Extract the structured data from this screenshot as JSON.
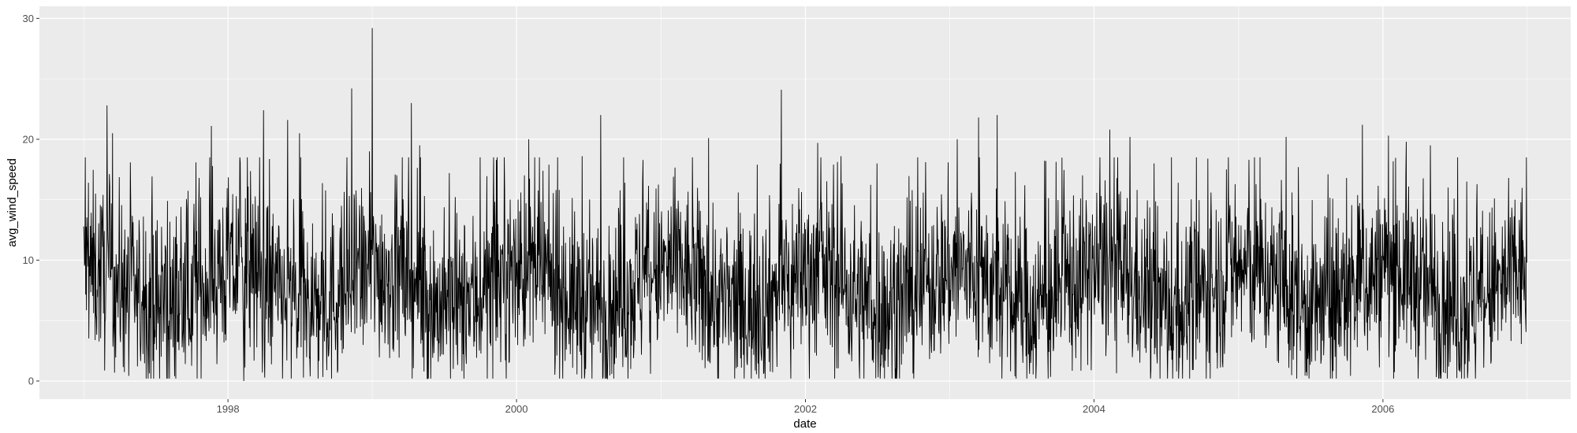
{
  "chart_data": {
    "type": "line",
    "title": "",
    "xlabel": "date",
    "ylabel": "avg_wind_speed",
    "x_type": "date",
    "x_range": [
      "1997-01-01",
      "2006-12-31"
    ],
    "xlim": [
      "1996-09-11",
      "2007-04-21"
    ],
    "ylim": [
      -1.5,
      31.0
    ],
    "x_ticks": [
      "1998",
      "2000",
      "2002",
      "2004",
      "2006"
    ],
    "y_ticks": [
      "0",
      "10",
      "20",
      "30"
    ],
    "grid": true,
    "legend": "none",
    "colors": {
      "panel_background": "#ebebeb",
      "grid_major": "#ffffff",
      "line": "#000000",
      "tick_text": "#4d4d4d"
    },
    "series": [
      {
        "x": [
          "1997-01-05",
          "1997-03-01",
          "1997-03-15",
          "1997-06-01",
          "1997-08-01",
          "1997-10-20",
          "1997-11-20",
          "1998-02-01",
          "1998-02-10",
          "1998-04-01",
          "1998-06-01",
          "1998-07-01",
          "1998-10-15",
          "1998-11-10",
          "1998-12-25",
          "1999-01-01",
          "1999-04-10",
          "1999-05-01",
          "1999-07-15",
          "1999-10-01",
          "2000-02-01",
          "2000-04-10",
          "2000-06-15",
          "2000-08-01",
          "2000-10-01",
          "2000-12-05",
          "2001-02-01",
          "2001-05-01",
          "2001-07-15",
          "2001-09-01",
          "2001-11-01",
          "2001-11-25",
          "2002-02-01",
          "2002-04-01",
          "2002-07-01",
          "2002-09-15",
          "2002-11-01",
          "2003-01-20",
          "2003-03-15",
          "2003-05-01",
          "2003-07-10",
          "2003-09-01",
          "2003-11-01",
          "2004-02-10",
          "2004-03-01",
          "2004-04-01",
          "2004-06-01",
          "2004-08-01",
          "2004-10-15",
          "2004-12-01",
          "2005-02-10",
          "2005-05-01",
          "2005-06-01",
          "2005-08-15",
          "2005-10-01",
          "2005-11-10",
          "2006-01-15",
          "2006-03-01",
          "2006-05-01",
          "2006-06-15",
          "2006-08-01",
          "2006-10-10",
          "2006-12-01",
          "2006-12-31"
        ],
        "y": [
          18.5,
          22.8,
          20.5,
          13.6,
          14.9,
          16.8,
          21.1,
          18.1,
          0.0,
          22.4,
          21.6,
          20.5,
          14.5,
          24.2,
          19.0,
          29.2,
          23.0,
          19.5,
          17.2,
          18.5,
          20.0,
          15.8,
          18.6,
          22.0,
          16.4,
          0.6,
          16.9,
          20.1,
          15.6,
          17.9,
          24.1,
          0.2,
          19.7,
          18.6,
          18.0,
          15.2,
          18.1,
          20.0,
          21.8,
          22.0,
          16.2,
          18.2,
          14.1,
          20.8,
          18.5,
          20.2,
          18.0,
          16.4,
          18.4,
          17.5,
          18.5,
          20.2,
          17.7,
          17.1,
          16.8,
          21.2,
          20.3,
          19.8,
          19.5,
          16.0,
          16.5,
          15.1,
          15.0,
          9.8
        ]
      }
    ]
  }
}
